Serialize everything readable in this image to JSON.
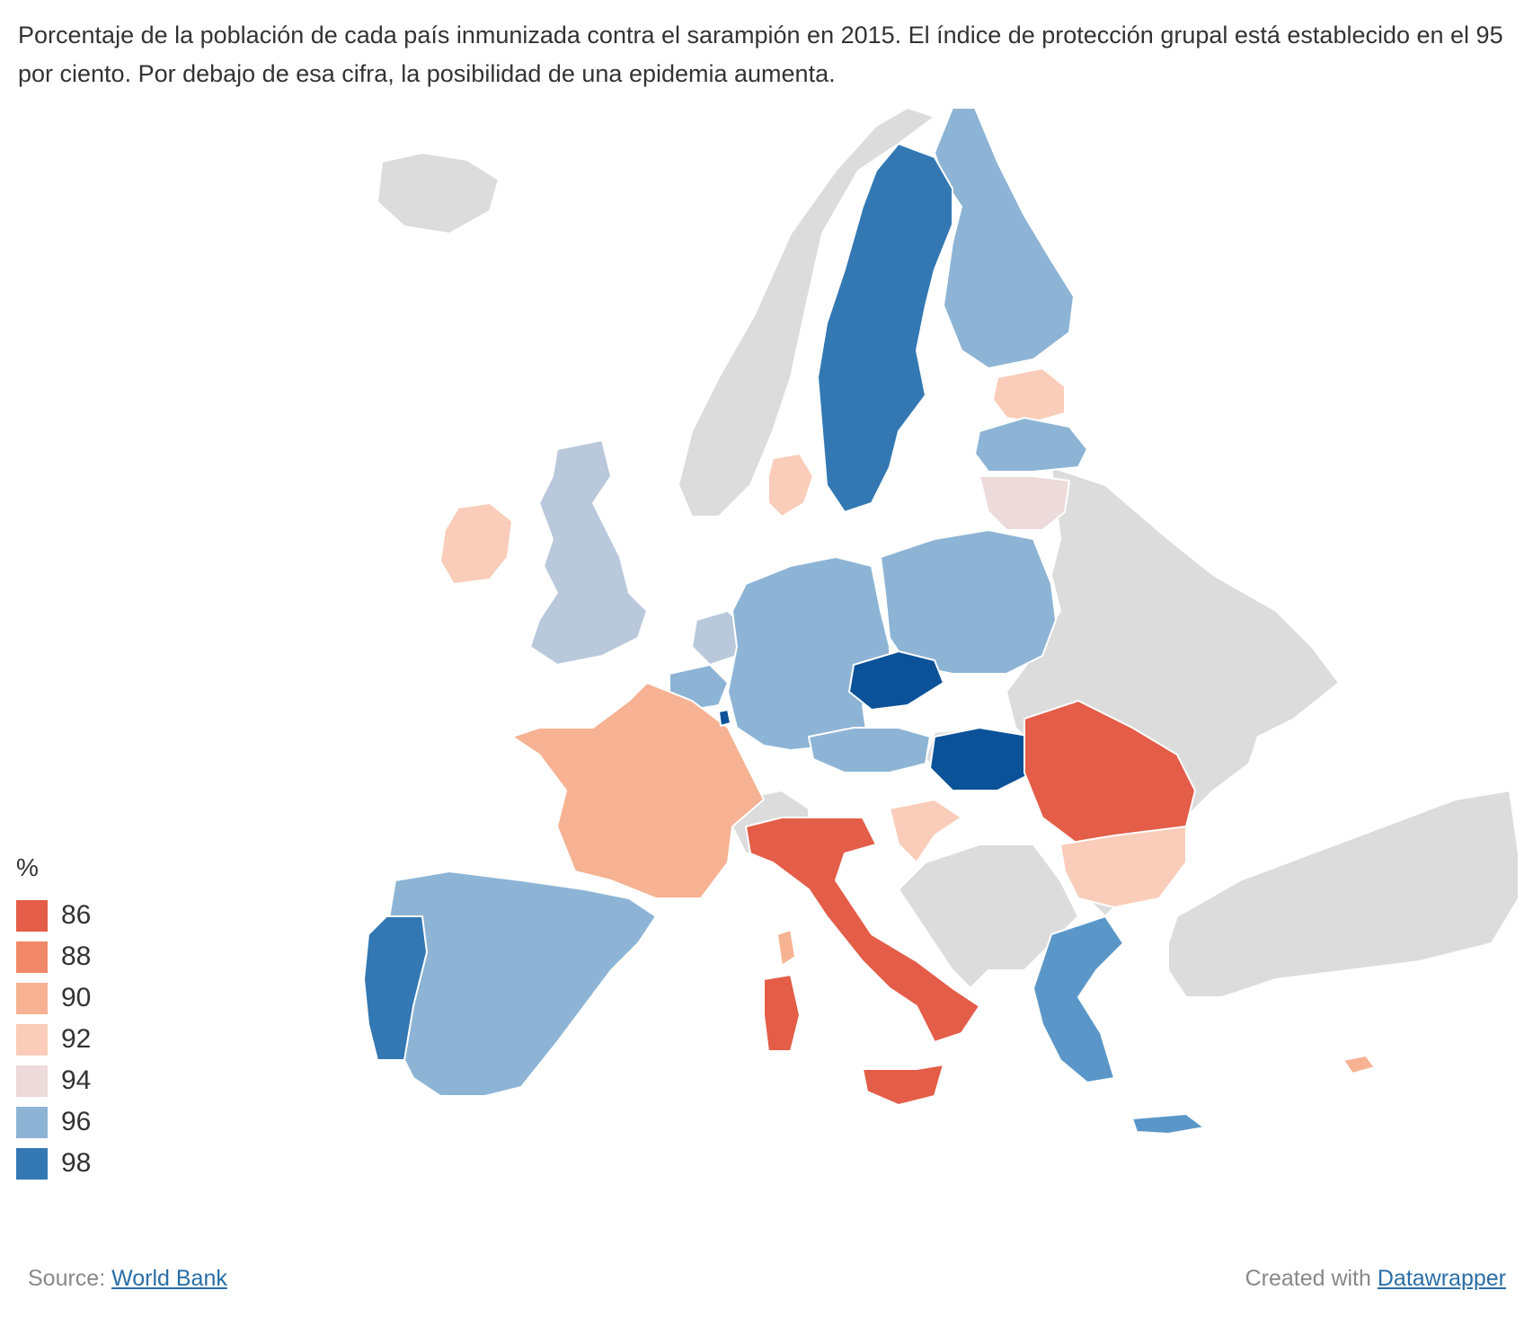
{
  "description": "Porcentaje de la población de cada país inmunizada contra el sarampión en 2015. El índice de protección grupal está establecido en el 95 por ciento. Por debajo de esa cifra, la posibilidad de una epidemia aumenta.",
  "legend": {
    "title": "%",
    "items": [
      {
        "label": "86",
        "color": "#e35d48"
      },
      {
        "label": "88",
        "color": "#f08868"
      },
      {
        "label": "90",
        "color": "#f6b293"
      },
      {
        "label": "92",
        "color": "#f9cdb9"
      },
      {
        "label": "94",
        "color": "#eddada"
      },
      {
        "label": "96",
        "color": "#8db4d5"
      },
      {
        "label": "98",
        "color": "#3378b3"
      }
    ]
  },
  "colors": {
    "no_data": "#dcdcdc",
    "v86": "#e35d48",
    "v88": "#f08868",
    "v90": "#f6b293",
    "v92": "#f9cdb9",
    "v94": "#eddada",
    "v95": "#b9c8db",
    "v96": "#8db4d5",
    "v97": "#5a97c8",
    "v98": "#3378b3",
    "v99": "#0b5299"
  },
  "footer": {
    "source_prefix": "Source: ",
    "source_link": "World Bank",
    "credit_prefix": "Created with ",
    "credit_link": "Datawrapper"
  }
}
